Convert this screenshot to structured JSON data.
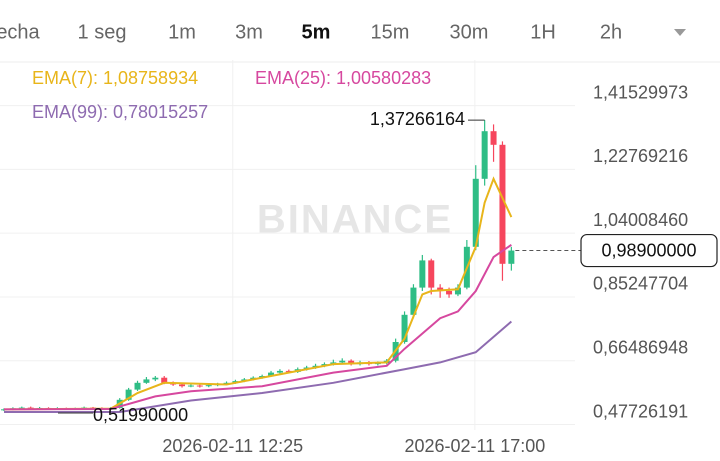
{
  "tabs": [
    "echa",
    "1 seg",
    "1m",
    "3m",
    "5m",
    "15m",
    "30m",
    "1H",
    "2h"
  ],
  "active_tab": "5m",
  "chart_data": {
    "type": "candlestick",
    "watermark": "BINANCE",
    "xlim": [
      -0.45,
      64.15
    ],
    "ylim": [
      0.4612,
      1.5494
    ],
    "xticks": [
      {
        "value": 25.7,
        "label": "2026-02-11 12:25"
      },
      {
        "value": 52.9,
        "label": "2026-02-11 17:00"
      }
    ],
    "yticks": [
      {
        "value": 1.41529973,
        "label": "1,41529973"
      },
      {
        "value": 1.22769216,
        "label": "1,22769216"
      },
      {
        "value": 1.0400846,
        "label": "1,04008460"
      },
      {
        "value": 0.85247704,
        "label": "0,85247704"
      },
      {
        "value": 0.66486948,
        "label": "0,66486948"
      },
      {
        "value": 0.47726191,
        "label": "0,47726191"
      }
    ],
    "grid": true,
    "up_color": "#2ebd85",
    "down_color": "#f6465d",
    "open": [
      0.52,
      0.522,
      0.525,
      0.527,
      0.524,
      0.526,
      0.523,
      0.525,
      0.522,
      0.524,
      0.527,
      0.525,
      0.523,
      0.526,
      0.55,
      0.58,
      0.6,
      0.61,
      0.615,
      0.6,
      0.595,
      0.59,
      0.592,
      0.59,
      0.593,
      0.596,
      0.6,
      0.605,
      0.61,
      0.615,
      0.62,
      0.63,
      0.635,
      0.632,
      0.64,
      0.645,
      0.65,
      0.655,
      0.66,
      0.665,
      0.655,
      0.66,
      0.655,
      0.658,
      0.665,
      0.72,
      0.8,
      0.88,
      0.96,
      0.88,
      0.87,
      0.86,
      0.88,
      1.0,
      1.2,
      1.34,
      1.3,
      0.95
    ],
    "high": [
      0.525,
      0.528,
      0.53,
      0.53,
      0.529,
      0.528,
      0.528,
      0.527,
      0.527,
      0.53,
      0.529,
      0.528,
      0.529,
      0.555,
      0.585,
      0.606,
      0.617,
      0.62,
      0.62,
      0.604,
      0.599,
      0.596,
      0.596,
      0.597,
      0.6,
      0.604,
      0.609,
      0.614,
      0.619,
      0.624,
      0.635,
      0.64,
      0.639,
      0.645,
      0.65,
      0.656,
      0.66,
      0.668,
      0.672,
      0.669,
      0.665,
      0.664,
      0.663,
      0.67,
      0.73,
      0.81,
      0.89,
      0.976,
      0.965,
      0.89,
      0.88,
      0.89,
      1.02,
      1.24,
      1.37266164,
      1.36,
      1.31,
      1.0
    ],
    "low": [
      0.517,
      0.519,
      0.522,
      0.521,
      0.521,
      0.52,
      0.521,
      0.52,
      0.52,
      0.521,
      0.5199,
      0.52,
      0.521,
      0.524,
      0.547,
      0.576,
      0.597,
      0.605,
      0.596,
      0.591,
      0.586,
      0.587,
      0.586,
      0.587,
      0.59,
      0.593,
      0.597,
      0.602,
      0.607,
      0.612,
      0.617,
      0.626,
      0.628,
      0.629,
      0.636,
      0.641,
      0.646,
      0.651,
      0.656,
      0.651,
      0.651,
      0.651,
      0.651,
      0.654,
      0.66,
      0.715,
      0.79,
      0.87,
      0.86,
      0.85,
      0.85,
      0.855,
      0.875,
      0.99,
      1.18,
      1.25,
      0.9,
      0.93
    ],
    "close": [
      0.522,
      0.525,
      0.527,
      0.524,
      0.526,
      0.523,
      0.525,
      0.522,
      0.524,
      0.527,
      0.525,
      0.523,
      0.526,
      0.55,
      0.58,
      0.6,
      0.61,
      0.615,
      0.6,
      0.595,
      0.59,
      0.592,
      0.59,
      0.593,
      0.596,
      0.6,
      0.605,
      0.61,
      0.615,
      0.62,
      0.63,
      0.635,
      0.632,
      0.64,
      0.645,
      0.65,
      0.655,
      0.66,
      0.665,
      0.655,
      0.66,
      0.655,
      0.658,
      0.665,
      0.72,
      0.8,
      0.88,
      0.96,
      0.88,
      0.87,
      0.86,
      0.88,
      1.0,
      1.2,
      1.34,
      1.3,
      0.95,
      0.989
    ],
    "series": [
      {
        "name": "EMA(7): 1,08758934",
        "color": "#e8b51a",
        "x": [
          0,
          12,
          15,
          18,
          25,
          30,
          37,
          43,
          45,
          47,
          48,
          51,
          53,
          54,
          55,
          57
        ],
        "values": [
          0.522,
          0.524,
          0.57,
          0.6,
          0.595,
          0.62,
          0.655,
          0.66,
          0.73,
          0.86,
          0.87,
          0.875,
          1.0,
          1.13,
          1.2,
          1.08758934
        ]
      },
      {
        "name": "EMA(25): 1,00580283",
        "color": "#d6489f",
        "x": [
          0,
          12,
          17,
          21,
          29,
          37,
          43,
          45,
          49,
          51,
          53,
          55,
          57
        ],
        "values": [
          0.522,
          0.523,
          0.56,
          0.575,
          0.59,
          0.63,
          0.65,
          0.7,
          0.79,
          0.81,
          0.87,
          0.97,
          1.00580283
        ]
      },
      {
        "name": "EMA(99): 0,78015257",
        "color": "#8e6bb0",
        "x": [
          0,
          13,
          21,
          29,
          37,
          45,
          49,
          53,
          57
        ],
        "values": [
          0.514,
          0.514,
          0.548,
          0.57,
          0.6,
          0.64,
          0.66,
          0.69,
          0.78015257
        ]
      }
    ],
    "annotations": [
      {
        "x": 54,
        "value": 1.37266164,
        "label": "1,37266164"
      },
      {
        "x": 10,
        "value": 0.5199,
        "label": "0,51990000"
      }
    ],
    "last_price": {
      "value": 0.989,
      "label": "0,98900000"
    }
  }
}
